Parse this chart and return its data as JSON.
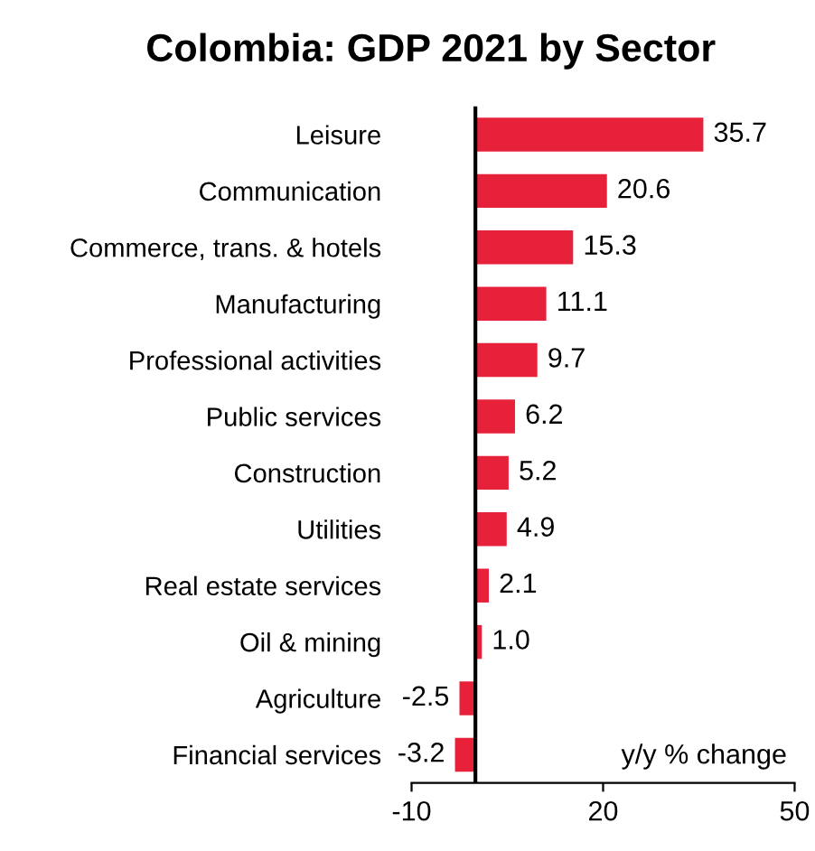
{
  "chart_data": {
    "type": "bar",
    "orientation": "horizontal",
    "title": "Colombia: GDP 2021 by Sector",
    "categories": [
      "Leisure",
      "Communication",
      "Commerce, trans. & hotels",
      "Manufacturing",
      "Professional activities",
      "Public services",
      "Construction",
      "Utilities",
      "Real estate services",
      "Oil & mining",
      "Agriculture",
      "Financial services"
    ],
    "values": [
      35.7,
      20.6,
      15.3,
      11.1,
      9.7,
      6.2,
      5.2,
      4.9,
      2.1,
      1.0,
      -2.5,
      -3.2
    ],
    "value_labels": [
      "35.7",
      "20.6",
      "15.3",
      "11.1",
      "9.7",
      "6.2",
      "5.2",
      "4.9",
      "2.1",
      "1.0",
      "-2.5",
      "-3.2"
    ],
    "color": "#e8213a",
    "xlim": [
      -10,
      50
    ],
    "xticks": [
      -10,
      20,
      50
    ],
    "ref_lines": [
      {
        "axis": "x",
        "value": 0,
        "color": "#000000"
      }
    ],
    "annotations": [
      {
        "text": "y/y % change"
      }
    ],
    "grid": false,
    "legend": false
  }
}
